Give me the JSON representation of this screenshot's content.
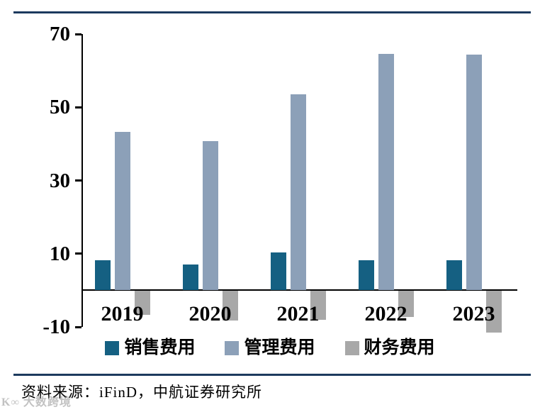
{
  "chart_data": {
    "type": "bar",
    "title": "",
    "categories": [
      "2019",
      "2020",
      "2021",
      "2022",
      "2023"
    ],
    "series": [
      {
        "name": "销售费用",
        "color": "#156082",
        "values": [
          8.2,
          7.1,
          10.4,
          8.3,
          8.2
        ]
      },
      {
        "name": "管理费用",
        "color": "#8ca0b8",
        "values": [
          43.2,
          40.8,
          53.5,
          64.6,
          64.3
        ]
      },
      {
        "name": "财务费用",
        "color": "#a8a8a8",
        "values": [
          -6.6,
          -8.1,
          -7.9,
          -7.1,
          -11.3
        ]
      }
    ],
    "xlabel": "",
    "ylabel": "",
    "ylim": [
      -10,
      70
    ],
    "yticks": [
      70,
      50,
      30,
      10,
      -10
    ],
    "grid": false,
    "legend_position": "bottom"
  },
  "source": {
    "text": "资料来源：iFinD，中航证券研究所"
  },
  "watermark": {
    "text": "K∞ 大数跨境"
  },
  "colors": {
    "rule": "#1c3a5e",
    "axis": "#000000"
  }
}
